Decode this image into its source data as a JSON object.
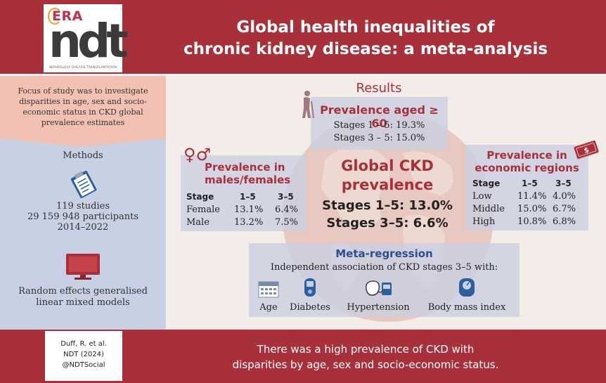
{
  "header": {
    "logo_era": "ERA",
    "logo_ndt": "ndt",
    "logo_caption": "NEPHROLOGY DIALYSIS TRANSPLANTATION",
    "title_line1": "Global health inequalities of",
    "title_line2": "chronic kidney disease: a meta-analysis"
  },
  "focus": {
    "text": "Focus of study was to investigate disparities in age, sex and socio-economic status in CKD global prevalence estimates"
  },
  "methods": {
    "title": "Methods",
    "studies": "119 studies",
    "participants": "29 159 948 participants",
    "years": "2014–2022",
    "model_line1": "Random effects generalised",
    "model_line2": "linear mixed models"
  },
  "results": {
    "title": "Results",
    "age": {
      "title": "Prevalence aged ≥ 60",
      "stage15": "Stages 1 – 5: 19.3%",
      "stage35": "Stages 3 – 5: 15.0%"
    },
    "sex": {
      "title_line1": "Prevalence in",
      "title_line2": "males/females",
      "headers": [
        "Stage",
        "1–5",
        "3–5"
      ],
      "rows": [
        [
          "Female",
          "13.1%",
          "6.4%"
        ],
        [
          "Male",
          "13.2%",
          "7.5%"
        ]
      ]
    },
    "global": {
      "title_line1": "Global CKD",
      "title_line2": "prevalence",
      "stage15": "Stages 1–5: 13.0%",
      "stage35": "Stages 3–5: 6.6%"
    },
    "economic": {
      "title_line1": "Prevalence in",
      "title_line2": "economic regions",
      "headers": [
        "Stage",
        "1–5",
        "3–5"
      ],
      "rows": [
        [
          "Low",
          "11.4%",
          "4.0%"
        ],
        [
          "Middle",
          "15.0%",
          "6.7%"
        ],
        [
          "High",
          "10.8%",
          "6.8%"
        ]
      ]
    },
    "meta": {
      "title": "Meta-regression",
      "subtitle": "Independent association of CKD stages 3–5 with:",
      "items": [
        "Age",
        "Diabetes",
        "Hypertension",
        "Body mass index"
      ]
    }
  },
  "footer": {
    "citation_author": "Duff, R. et al.",
    "citation_journal": "NDT (2024)",
    "citation_handle": "@NDTSocial",
    "conclusion_line1": "There was a high prevalence of CKD with",
    "conclusion_line2": "disparities by age, sex and socio-economic status."
  },
  "colors": {
    "brand_red": "#a8303a",
    "methods_blue": "#c8d1e4",
    "focus_peach": "#f2c1b3",
    "meta_blue": "#2a4f8f"
  },
  "icons": [
    "elderly-person-icon",
    "gender-symbols-icon",
    "money-icon",
    "clipboard-icon",
    "monitor-icon",
    "calendar-icon",
    "glucose-meter-icon",
    "blood-pressure-monitor-icon",
    "scale-icon",
    "globe-icon"
  ]
}
